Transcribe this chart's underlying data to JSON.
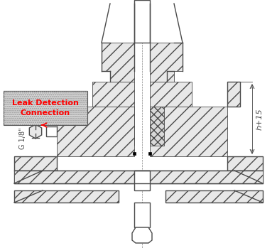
{
  "bg_color": "#ffffff",
  "lc": "#4a4a4a",
  "hc": "#4a4a4a",
  "lw_main": 1.0,
  "lw_thin": 0.6,
  "label_leak": "Leak Detection\nConnection",
  "label_g18": "G 1/8\"",
  "label_h15": "h+15",
  "figsize": [
    3.9,
    3.49
  ],
  "dpi": 100,
  "fc_hatch": "#e8e8e8",
  "fc_white": "#ffffff",
  "fc_medium": "#d0d0d0"
}
